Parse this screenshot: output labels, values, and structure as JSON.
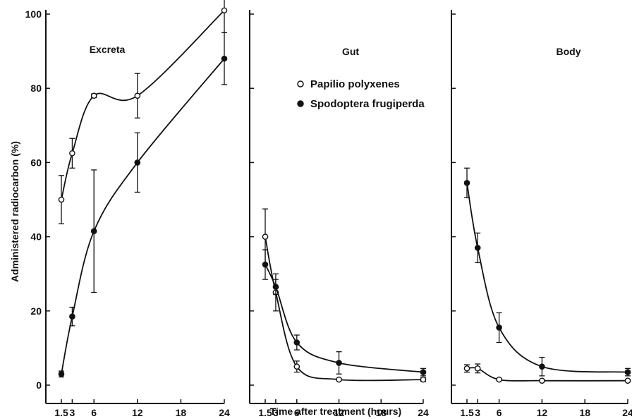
{
  "chart_data": {
    "type": "line",
    "xlabel": "Time after treatment (hours)",
    "ylabel": "Administered radiocarbon (%)",
    "ylim": [
      0,
      100
    ],
    "yticks": [
      0,
      20,
      40,
      60,
      80,
      100
    ],
    "xlim": [
      0,
      24
    ],
    "xticks": [
      1.5,
      3,
      6,
      12,
      18,
      24
    ],
    "legend": {
      "placement": "top-center",
      "entries": [
        {
          "label": "Papilio polyxenes",
          "marker": "open-circle"
        },
        {
          "label": "Spodoptera frugiperda",
          "marker": "filled-circle"
        }
      ]
    },
    "panels": [
      {
        "title": "Excreta",
        "series": [
          {
            "name": "Papilio polyxenes",
            "marker": "open",
            "x": [
              1.5,
              3,
              6,
              12,
              24
            ],
            "y": [
              50,
              62.5,
              78,
              78,
              101
            ],
            "err": [
              6.5,
              4,
              0.5,
              6,
              6
            ]
          },
          {
            "name": "Spodoptera frugiperda",
            "marker": "filled",
            "x": [
              1.5,
              3,
              6,
              12,
              24
            ],
            "y": [
              3,
              18.5,
              41.5,
              60,
              88
            ],
            "err": [
              0.8,
              2.5,
              16.5,
              8,
              7
            ]
          }
        ]
      },
      {
        "title": "Gut",
        "series": [
          {
            "name": "Papilio polyxenes",
            "marker": "open",
            "x": [
              1.5,
              3,
              6,
              12,
              24
            ],
            "y": [
              40,
              25,
              5,
              1.5,
              1.5
            ],
            "err": [
              7.5,
              5,
              1.5,
              0.3,
              0.5
            ]
          },
          {
            "name": "Spodoptera frugiperda",
            "marker": "filled",
            "x": [
              1.5,
              3,
              6,
              12,
              24
            ],
            "y": [
              32.5,
              26.5,
              11.5,
              6,
              3.5
            ],
            "err": [
              4,
              2,
              2,
              3,
              1
            ]
          }
        ]
      },
      {
        "title": "Body",
        "series": [
          {
            "name": "Papilio polyxenes",
            "marker": "open",
            "x": [
              1.5,
              3,
              6,
              12,
              24
            ],
            "y": [
              4.5,
              4.5,
              1.5,
              1.2,
              1.2
            ],
            "err": [
              1,
              1.2,
              0.3,
              0.3,
              0.3
            ]
          },
          {
            "name": "Spodoptera frugiperda",
            "marker": "filled",
            "x": [
              1.5,
              3,
              6,
              12,
              24
            ],
            "y": [
              54.5,
              37,
              15.5,
              5,
              3.5
            ],
            "err": [
              4,
              4,
              4,
              2.5,
              1
            ]
          }
        ]
      }
    ]
  }
}
